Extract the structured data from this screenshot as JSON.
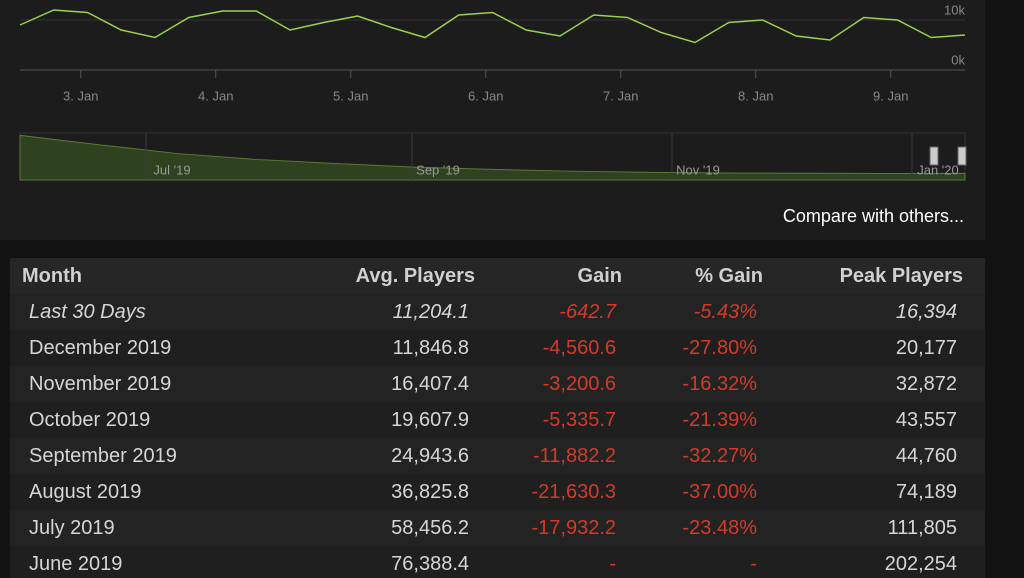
{
  "chart_data": {
    "type": "line",
    "x": [
      2.55,
      2.8,
      3.05,
      3.3,
      3.55,
      3.8,
      4.05,
      4.3,
      4.55,
      4.8,
      5.05,
      5.3,
      5.55,
      5.8,
      6.05,
      6.3,
      6.55,
      6.8,
      7.05,
      7.3,
      7.55,
      7.8,
      8.05,
      8.3,
      8.55,
      8.8,
      9.05,
      9.3,
      9.55
    ],
    "series": [
      {
        "name": "Players",
        "color": "#9bd14f",
        "values": [
          9000,
          12000,
          11500,
          8000,
          6500,
          10500,
          11800,
          11800,
          8000,
          9500,
          10800,
          8500,
          6500,
          11000,
          11500,
          8000,
          6800,
          11000,
          10500,
          7500,
          5500,
          9500,
          10000,
          6800,
          6000,
          10500,
          10000,
          6500,
          7000
        ]
      }
    ],
    "xlim": [
      2.55,
      9.55
    ],
    "xticks": [
      {
        "value": 3,
        "label": "3. Jan"
      },
      {
        "value": 4,
        "label": "4. Jan"
      },
      {
        "value": 5,
        "label": "5. Jan"
      },
      {
        "value": 6,
        "label": "6. Jan"
      },
      {
        "value": 7,
        "label": "7. Jan"
      },
      {
        "value": 8,
        "label": "8. Jan"
      },
      {
        "value": 9,
        "label": "9. Jan"
      }
    ],
    "ylim": [
      0,
      14000
    ],
    "yticks": [
      {
        "value": 0,
        "label": "0k"
      },
      {
        "value": 10000,
        "label": "10k"
      }
    ]
  },
  "navigator": {
    "labels": [
      "Jul '19",
      "Sep '19",
      "Nov '19",
      "Jan '20"
    ],
    "values": [
      76000,
      60000,
      45000,
      35000,
      28000,
      22000,
      18000,
      15000,
      13000,
      12000,
      11500,
      11000,
      11200
    ],
    "ylim": [
      0,
      80000
    ]
  },
  "compare_link": "Compare with others...",
  "table": {
    "header": [
      "Month",
      "Avg. Players",
      "Gain",
      "% Gain",
      "Peak Players"
    ],
    "rows": [
      [
        "Last 30 Days",
        "11,204.1",
        "-642.7",
        "-5.43%",
        "16,394"
      ],
      [
        "December 2019",
        "11,846.8",
        "-4,560.6",
        "-27.80%",
        "20,177"
      ],
      [
        "November 2019",
        "16,407.4",
        "-3,200.6",
        "-16.32%",
        "32,872"
      ],
      [
        "October 2019",
        "19,607.9",
        "-5,335.7",
        "-21.39%",
        "43,557"
      ],
      [
        "September 2019",
        "24,943.6",
        "-11,882.2",
        "-32.27%",
        "44,760"
      ],
      [
        "August 2019",
        "36,825.8",
        "-21,630.3",
        "-37.00%",
        "74,189"
      ],
      [
        "July 2019",
        "58,456.2",
        "-17,932.2",
        "-23.48%",
        "111,805"
      ],
      [
        "June 2019",
        "76,388.4",
        "-",
        "-",
        "202,254"
      ]
    ]
  }
}
